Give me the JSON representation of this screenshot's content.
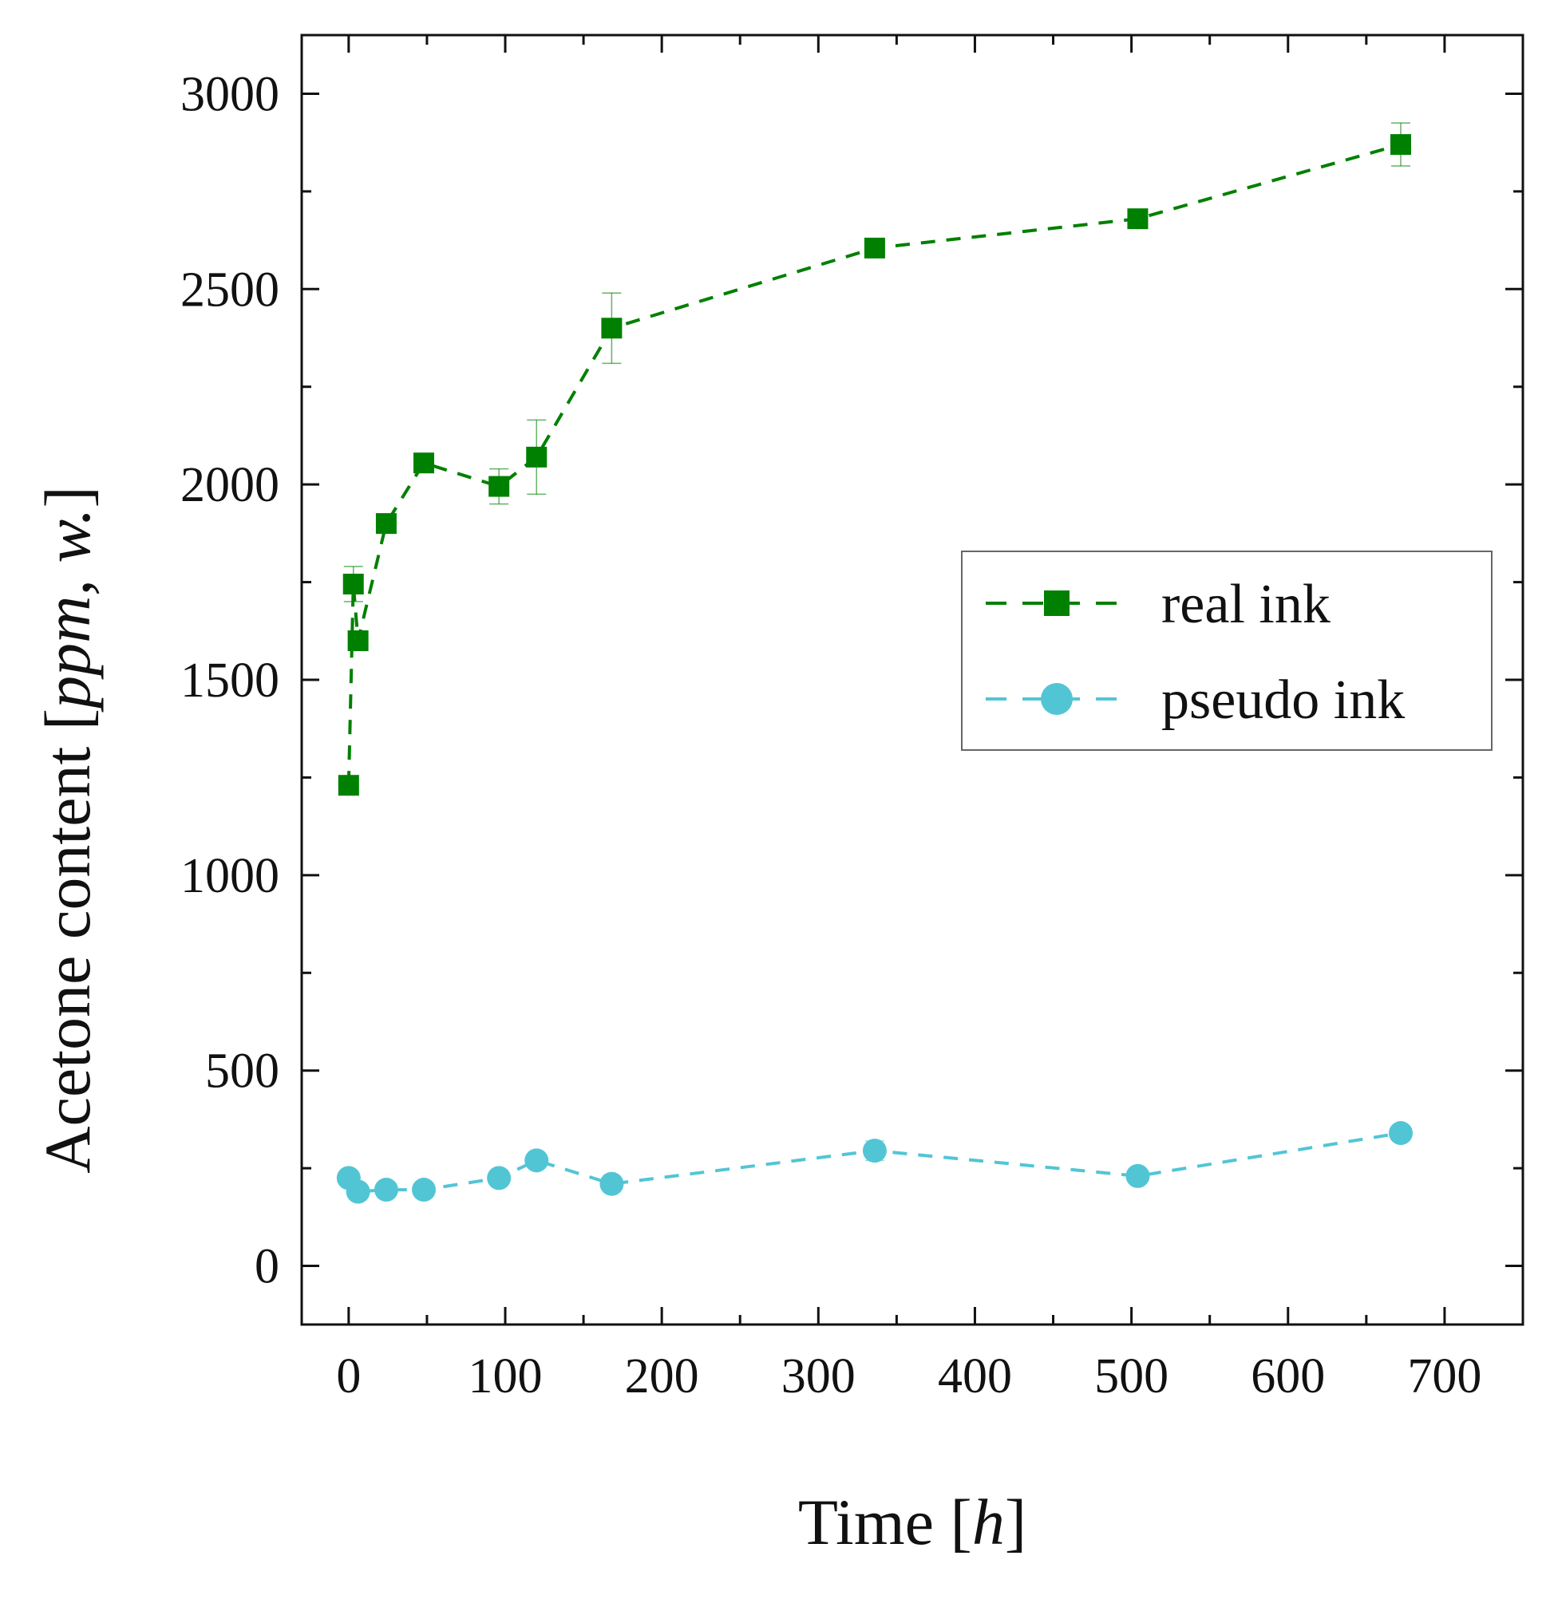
{
  "chart_data": {
    "type": "line",
    "xlabel": {
      "main": "Time ",
      "open": "[",
      "italic": "h",
      "close": "]"
    },
    "ylabel": {
      "main": "Acetone content ",
      "open": "[",
      "italic": "ppm, w.",
      "close": "]"
    },
    "xlim": [
      -30,
      750
    ],
    "ylim": [
      -150,
      3150
    ],
    "xticks": [
      0,
      100,
      200,
      300,
      400,
      500,
      600,
      700
    ],
    "xtick_labels": [
      "0",
      "100",
      "200",
      "300",
      "400",
      "500",
      "600",
      "700"
    ],
    "yticks": [
      0,
      500,
      1000,
      1500,
      2000,
      2500,
      3000
    ],
    "ytick_labels": [
      "0",
      "500",
      "1000",
      "1500",
      "2000",
      "2500",
      "3000"
    ],
    "legend_position": "right-middle",
    "grid": false,
    "series": [
      {
        "name": "real ink",
        "marker": "square",
        "linestyle": "dashed",
        "color": "#008000",
        "x": [
          0,
          3,
          6,
          24,
          48,
          96,
          120,
          168,
          336,
          504,
          672
        ],
        "y": [
          1230,
          1745,
          1600,
          1900,
          2055,
          1995,
          2070,
          2400,
          2605,
          2680,
          2870
        ],
        "yerr": [
          0,
          45,
          0,
          0,
          0,
          45,
          95,
          90,
          0,
          0,
          55
        ]
      },
      {
        "name": "pseudo ink",
        "marker": "circle",
        "linestyle": "dashed",
        "color": "#52C5D5",
        "x": [
          0,
          6,
          24,
          48,
          96,
          120,
          168,
          336,
          504,
          672
        ],
        "y": [
          225,
          190,
          195,
          195,
          225,
          270,
          210,
          295,
          230,
          340
        ],
        "yerr": [
          0,
          0,
          0,
          0,
          0,
          0,
          0,
          25,
          0,
          0
        ]
      }
    ]
  }
}
